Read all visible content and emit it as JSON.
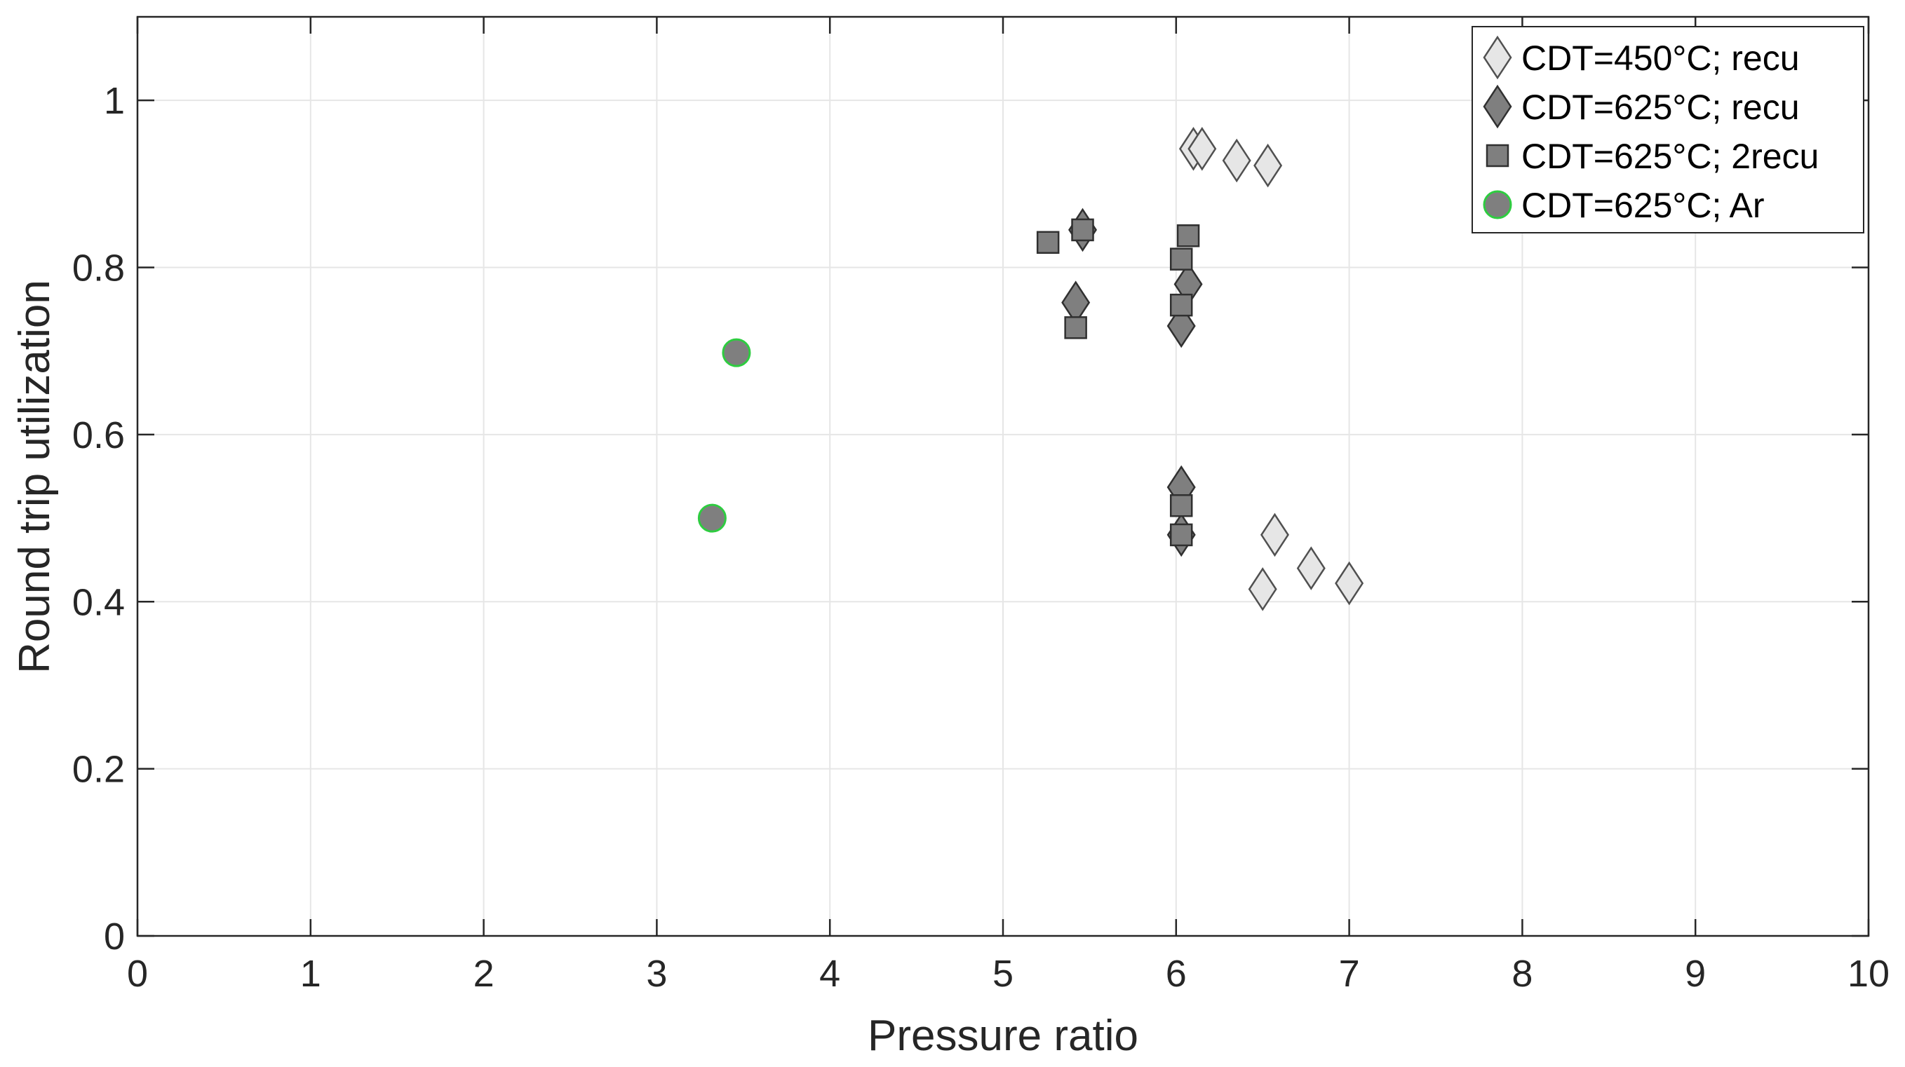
{
  "chart_data": {
    "type": "scatter",
    "xlabel": "Pressure ratio",
    "ylabel": "Round trip utilization",
    "xlim": [
      0,
      10
    ],
    "ylim": [
      0,
      1.1
    ],
    "xticks": [
      "0",
      "1",
      "2",
      "3",
      "4",
      "5",
      "6",
      "7",
      "8",
      "9",
      "10"
    ],
    "yticks": [
      "0",
      "0.2",
      "0.4",
      "0.6",
      "0.8",
      "1"
    ],
    "grid": true,
    "legend_position": "top-right",
    "series": [
      {
        "name": "CDT=450°C; recu",
        "marker": "diamond",
        "fill": "#e6e6e6",
        "edge": "#505050",
        "points": [
          [
            6.1,
            0.942
          ],
          [
            6.15,
            0.942
          ],
          [
            6.35,
            0.928
          ],
          [
            6.53,
            0.922
          ],
          [
            6.57,
            0.48
          ],
          [
            6.5,
            0.415
          ],
          [
            6.78,
            0.44
          ],
          [
            7.0,
            0.422
          ]
        ]
      },
      {
        "name": "CDT=625°C; recu",
        "marker": "diamond",
        "fill": "#7f7f7f",
        "edge": "#303030",
        "points": [
          [
            5.46,
            0.845
          ],
          [
            5.42,
            0.758
          ],
          [
            6.07,
            0.78
          ],
          [
            6.03,
            0.73
          ],
          [
            6.03,
            0.537
          ],
          [
            6.03,
            0.48
          ]
        ]
      },
      {
        "name": "CDT=625°C; 2recu",
        "marker": "square",
        "fill": "#7f7f7f",
        "edge": "#303030",
        "points": [
          [
            5.26,
            0.83
          ],
          [
            5.46,
            0.845
          ],
          [
            5.42,
            0.728
          ],
          [
            6.07,
            0.838
          ],
          [
            6.03,
            0.81
          ],
          [
            6.03,
            0.755
          ],
          [
            6.03,
            0.515
          ],
          [
            6.03,
            0.48
          ]
        ]
      },
      {
        "name": "CDT=625°C; Ar",
        "marker": "circle",
        "fill": "#7f7f7f",
        "edge": "#2ecc40",
        "points": [
          [
            3.46,
            0.698
          ],
          [
            3.32,
            0.5
          ]
        ]
      }
    ]
  }
}
